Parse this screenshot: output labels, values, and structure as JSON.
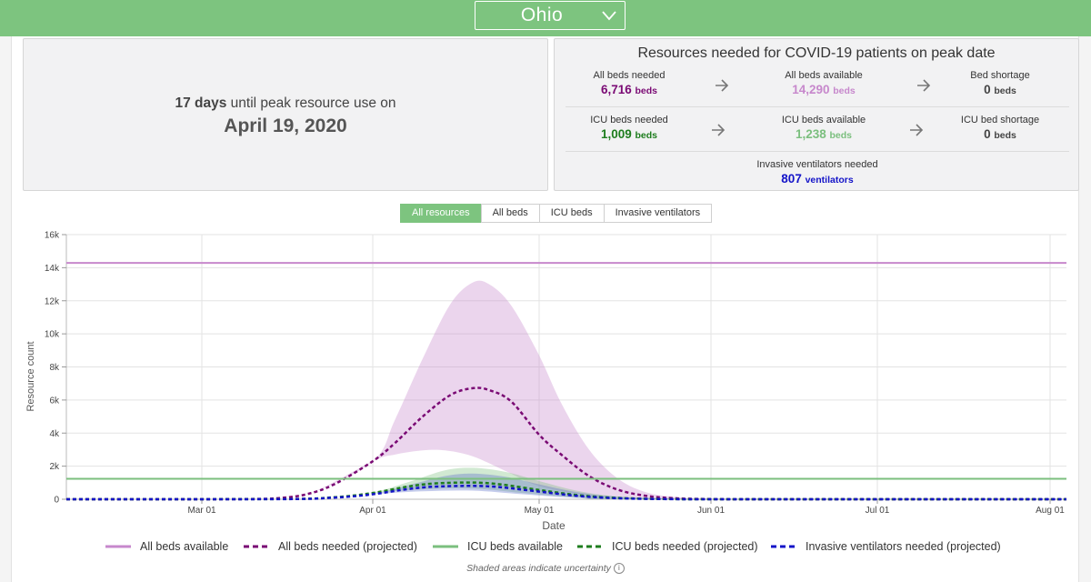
{
  "header": {
    "state": "Ohio"
  },
  "peak": {
    "days_value": "17 days",
    "days_text": " until peak resource use on",
    "date": "April 19, 2020"
  },
  "resources": {
    "title": "Resources needed for COVID-19 patients on peak date",
    "all_beds_needed": {
      "label": "All beds needed",
      "value": "6,716",
      "unit": "beds"
    },
    "all_beds_available": {
      "label": "All beds available",
      "value": "14,290",
      "unit": "beds"
    },
    "bed_shortage": {
      "label": "Bed shortage",
      "value": "0",
      "unit": "beds"
    },
    "icu_beds_needed": {
      "label": "ICU beds needed",
      "value": "1,009",
      "unit": "beds"
    },
    "icu_beds_available": {
      "label": "ICU beds available",
      "value": "1,238",
      "unit": "beds"
    },
    "icu_bed_shortage": {
      "label": "ICU bed shortage",
      "value": "0",
      "unit": "beds"
    },
    "ventilators_needed": {
      "label": "Invasive ventilators needed",
      "value": "807",
      "unit": "ventilators"
    }
  },
  "tabs": [
    "All resources",
    "All beds",
    "ICU beds",
    "Invasive ventilators"
  ],
  "active_tab": "All resources",
  "colors": {
    "green": "#7dc47f",
    "purple": "#7a0a74",
    "lilac": "#c788cc",
    "dark_green": "#1e7d1e",
    "blue": "#1414c8",
    "light_green": "#7bbf7e"
  },
  "icons": {
    "dropdown": "chevron-down-icon",
    "arrow": "arrow-right-icon",
    "info": "info-icon"
  },
  "footnote": "Shaded areas indicate uncertainty",
  "chart_data": {
    "type": "line",
    "xlabel": "Date",
    "ylabel": "Resource count",
    "x_ticks": [
      "Mar 01",
      "Apr 01",
      "May 01",
      "Jun 01",
      "Jul 01",
      "Aug 01"
    ],
    "y_ticks": [
      "0",
      "2k",
      "4k",
      "6k",
      "8k",
      "10k",
      "12k",
      "14k",
      "16k"
    ],
    "ylim": [
      0,
      16000
    ],
    "xlim": [
      "2020-02-06",
      "2020-08-04"
    ],
    "grid": true,
    "legend_position": "bottom",
    "series": [
      {
        "name": "All beds available",
        "style": "solid",
        "color": "#c788cc",
        "points": [
          [
            "2020-02-06",
            14290
          ],
          [
            "2020-08-04",
            14290
          ]
        ]
      },
      {
        "name": "All beds needed (projected)",
        "style": "dashed",
        "color": "#7a0a74",
        "points": [
          [
            "2020-02-06",
            0
          ],
          [
            "2020-03-01",
            2
          ],
          [
            "2020-03-10",
            15
          ],
          [
            "2020-03-15",
            70
          ],
          [
            "2020-03-20",
            300
          ],
          [
            "2020-03-25",
            900
          ],
          [
            "2020-04-01",
            2300
          ],
          [
            "2020-04-05",
            3400
          ],
          [
            "2020-04-10",
            5000
          ],
          [
            "2020-04-15",
            6300
          ],
          [
            "2020-04-19",
            6716
          ],
          [
            "2020-04-22",
            6600
          ],
          [
            "2020-04-26",
            5900
          ],
          [
            "2020-05-01",
            3900
          ],
          [
            "2020-05-05",
            2700
          ],
          [
            "2020-05-10",
            1400
          ],
          [
            "2020-05-15",
            600
          ],
          [
            "2020-05-20",
            220
          ],
          [
            "2020-05-25",
            70
          ],
          [
            "2020-06-01",
            12
          ],
          [
            "2020-06-15",
            0
          ],
          [
            "2020-08-04",
            0
          ]
        ],
        "lower": [
          [
            "2020-02-06",
            0
          ],
          [
            "2020-03-10",
            15
          ],
          [
            "2020-03-20",
            300
          ],
          [
            "2020-04-01",
            2300
          ],
          [
            "2020-04-05",
            2700
          ],
          [
            "2020-04-10",
            2950
          ],
          [
            "2020-04-14",
            2950
          ],
          [
            "2020-04-19",
            2600
          ],
          [
            "2020-04-25",
            1700
          ],
          [
            "2020-05-01",
            800
          ],
          [
            "2020-05-10",
            250
          ],
          [
            "2020-05-20",
            60
          ],
          [
            "2020-06-01",
            0
          ],
          [
            "2020-08-04",
            0
          ]
        ],
        "upper": [
          [
            "2020-02-06",
            0
          ],
          [
            "2020-03-10",
            15
          ],
          [
            "2020-03-20",
            300
          ],
          [
            "2020-04-01",
            2300
          ],
          [
            "2020-04-05",
            4800
          ],
          [
            "2020-04-10",
            8500
          ],
          [
            "2020-04-15",
            11800
          ],
          [
            "2020-04-19",
            13100
          ],
          [
            "2020-04-22",
            13000
          ],
          [
            "2020-04-26",
            11700
          ],
          [
            "2020-05-01",
            8700
          ],
          [
            "2020-05-05",
            5800
          ],
          [
            "2020-05-10",
            3000
          ],
          [
            "2020-05-15",
            1300
          ],
          [
            "2020-05-20",
            450
          ],
          [
            "2020-05-26",
            120
          ],
          [
            "2020-06-05",
            0
          ],
          [
            "2020-08-04",
            0
          ]
        ]
      },
      {
        "name": "ICU beds available",
        "style": "solid",
        "color": "#7bbf7e",
        "points": [
          [
            "2020-02-06",
            1238
          ],
          [
            "2020-08-04",
            1238
          ]
        ]
      },
      {
        "name": "ICU beds needed (projected)",
        "style": "dashed",
        "color": "#1e7d1e",
        "points": [
          [
            "2020-02-06",
            0
          ],
          [
            "2020-03-15",
            10
          ],
          [
            "2020-03-25",
            120
          ],
          [
            "2020-04-01",
            380
          ],
          [
            "2020-04-07",
            750
          ],
          [
            "2020-04-12",
            950
          ],
          [
            "2020-04-19",
            1009
          ],
          [
            "2020-04-24",
            900
          ],
          [
            "2020-05-01",
            560
          ],
          [
            "2020-05-08",
            250
          ],
          [
            "2020-05-15",
            80
          ],
          [
            "2020-05-25",
            10
          ],
          [
            "2020-06-05",
            0
          ],
          [
            "2020-08-04",
            0
          ]
        ],
        "lower": [
          [
            "2020-02-06",
            0
          ],
          [
            "2020-03-25",
            120
          ],
          [
            "2020-04-01",
            380
          ],
          [
            "2020-04-10",
            600
          ],
          [
            "2020-04-19",
            650
          ],
          [
            "2020-04-28",
            380
          ],
          [
            "2020-05-08",
            100
          ],
          [
            "2020-05-20",
            0
          ],
          [
            "2020-08-04",
            0
          ]
        ],
        "upper": [
          [
            "2020-02-06",
            0
          ],
          [
            "2020-03-25",
            120
          ],
          [
            "2020-04-01",
            400
          ],
          [
            "2020-04-08",
            1100
          ],
          [
            "2020-04-14",
            1750
          ],
          [
            "2020-04-19",
            1900
          ],
          [
            "2020-04-25",
            1650
          ],
          [
            "2020-05-01",
            1100
          ],
          [
            "2020-05-08",
            500
          ],
          [
            "2020-05-15",
            180
          ],
          [
            "2020-05-25",
            30
          ],
          [
            "2020-06-05",
            0
          ],
          [
            "2020-08-04",
            0
          ]
        ]
      },
      {
        "name": "Invasive ventilators needed (projected)",
        "style": "dashed",
        "color": "#1414c8",
        "points": [
          [
            "2020-02-06",
            0
          ],
          [
            "2020-03-15",
            8
          ],
          [
            "2020-03-25",
            100
          ],
          [
            "2020-04-01",
            300
          ],
          [
            "2020-04-07",
            600
          ],
          [
            "2020-04-12",
            760
          ],
          [
            "2020-04-19",
            807
          ],
          [
            "2020-04-24",
            730
          ],
          [
            "2020-05-01",
            460
          ],
          [
            "2020-05-08",
            200
          ],
          [
            "2020-05-15",
            60
          ],
          [
            "2020-05-25",
            8
          ],
          [
            "2020-06-05",
            0
          ],
          [
            "2020-08-04",
            0
          ]
        ],
        "lower": [
          [
            "2020-02-06",
            0
          ],
          [
            "2020-03-25",
            100
          ],
          [
            "2020-04-01",
            300
          ],
          [
            "2020-04-10",
            480
          ],
          [
            "2020-04-19",
            520
          ],
          [
            "2020-04-28",
            300
          ],
          [
            "2020-05-08",
            80
          ],
          [
            "2020-05-20",
            0
          ],
          [
            "2020-08-04",
            0
          ]
        ],
        "upper": [
          [
            "2020-02-06",
            0
          ],
          [
            "2020-03-25",
            100
          ],
          [
            "2020-04-01",
            320
          ],
          [
            "2020-04-08",
            900
          ],
          [
            "2020-04-14",
            1400
          ],
          [
            "2020-04-19",
            1550
          ],
          [
            "2020-04-25",
            1350
          ],
          [
            "2020-05-01",
            900
          ],
          [
            "2020-05-08",
            420
          ],
          [
            "2020-05-15",
            150
          ],
          [
            "2020-05-25",
            25
          ],
          [
            "2020-06-05",
            0
          ],
          [
            "2020-08-04",
            0
          ]
        ]
      }
    ]
  }
}
